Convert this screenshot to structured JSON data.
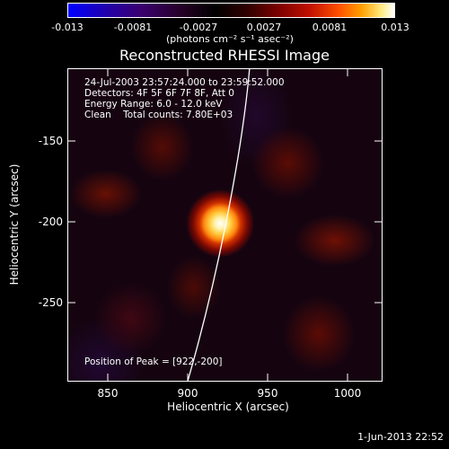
{
  "colorbar": {
    "tick_labels": [
      "-0.013",
      "-0.0081",
      "-0.0027",
      "0.0027",
      "0.0081",
      "0.013"
    ],
    "units_label": "(photons cm⁻² s⁻¹ asec⁻²)",
    "range": [
      -0.013,
      0.013
    ]
  },
  "title": "Reconstructed RHESSI Image",
  "info": {
    "time_range": "24-Jul-2003 23:57:24.000 to 23:59:52.000",
    "detectors": "Detectors: 4F 5F 6F 7F 8F, Att 0",
    "energy": "Energy Range: 6.0 - 12.0 keV",
    "clean": "Clean    Total counts: 7.80E+03"
  },
  "peak_label": "Position of Peak = [922,-200]",
  "axes": {
    "xlabel": "Heliocentric X (arcsec)",
    "ylabel": "Heliocentric Y (arcsec)",
    "x_ticks": [
      "850",
      "900",
      "950",
      "1000"
    ],
    "y_ticks": [
      "-150",
      "-200",
      "-250"
    ],
    "xlim": [
      825,
      1020
    ],
    "ylim": [
      -298,
      -105
    ]
  },
  "footer_timestamp": "1-Jun-2013 22:52",
  "peak": {
    "x": 922,
    "y": -200
  }
}
